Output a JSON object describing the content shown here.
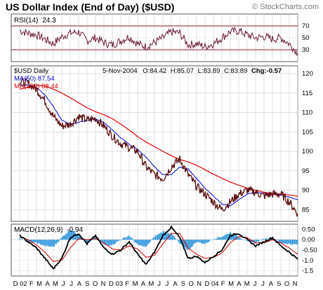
{
  "header": {
    "title": "US Dollar Index (End of Day) ($USD)",
    "credit": "© StockCharts.com"
  },
  "colors": {
    "price": "#5a1010",
    "ma50": "#0000cc",
    "ma200": "#dd0000",
    "rsi": "#6b1a3a",
    "rsi_guides": "#8b1a2a",
    "macd": "#000000",
    "signal": "#cc0000",
    "histogram": "#3399dd",
    "grid": "#cccccc",
    "panel_border": "#555555"
  },
  "chart_data": [
    {
      "type": "line",
      "panel": "RSI",
      "label": "RSI(14)",
      "current_value": "24.3",
      "y_ticks": [
        30,
        50,
        70
      ],
      "ylim": [
        10,
        90
      ],
      "guides": [
        30,
        70
      ],
      "x": [
        "2002-02",
        "2002-03",
        "2002-04",
        "2002-05",
        "2002-06",
        "2002-07",
        "2002-08",
        "2002-09",
        "2002-10",
        "2002-11",
        "2002-12",
        "2003-01",
        "2003-02",
        "2003-03",
        "2003-04",
        "2003-05",
        "2003-06",
        "2003-07",
        "2003-08",
        "2003-09",
        "2003-10",
        "2003-11",
        "2003-12",
        "2004-01",
        "2004-02",
        "2004-03",
        "2004-04",
        "2004-05",
        "2004-06",
        "2004-07",
        "2004-08",
        "2004-09",
        "2004-10",
        "2004-11"
      ],
      "values": [
        62,
        58,
        55,
        48,
        40,
        52,
        58,
        60,
        45,
        50,
        42,
        38,
        45,
        52,
        40,
        35,
        42,
        50,
        60,
        58,
        38,
        40,
        35,
        40,
        50,
        60,
        62,
        55,
        50,
        52,
        48,
        50,
        40,
        24.3
      ]
    },
    {
      "type": "line",
      "panel": "price",
      "legend": [
        "$USD Daily",
        "MA(50) 87.54",
        "MA(200) 88.44"
      ],
      "info": {
        "date": "5-Nov-2004",
        "open": "O:84.42",
        "high": "H:85.07",
        "low": "L:83.89",
        "close": "C:83.89",
        "change": "Chg:-0.57"
      },
      "y_ticks": [
        85,
        90,
        95,
        100,
        105,
        110,
        115,
        120
      ],
      "ylim": [
        82,
        122
      ],
      "x_labels": [
        "D",
        "02",
        "F",
        "M",
        "A",
        "M",
        "J",
        "J",
        "A",
        "S",
        "O",
        "N",
        "D",
        "03",
        "F",
        "M",
        "A",
        "M",
        "J",
        "J",
        "A",
        "S",
        "O",
        "N",
        "D",
        "04",
        "F",
        "M",
        "A",
        "M",
        "J",
        "J",
        "A",
        "S",
        "O",
        "N"
      ],
      "x": [
        "2002-02",
        "2002-03",
        "2002-04",
        "2002-05",
        "2002-06",
        "2002-07",
        "2002-08",
        "2002-09",
        "2002-10",
        "2002-11",
        "2002-12",
        "2003-01",
        "2003-02",
        "2003-03",
        "2003-04",
        "2003-05",
        "2003-06",
        "2003-07",
        "2003-08",
        "2003-09",
        "2003-10",
        "2003-11",
        "2003-12",
        "2004-01",
        "2004-02",
        "2004-03",
        "2004-04",
        "2004-05",
        "2004-06",
        "2004-07",
        "2004-08",
        "2004-09",
        "2004-10",
        "2004-11"
      ],
      "series": [
        {
          "name": "$USD Daily",
          "values": [
            118,
            117.5,
            116,
            113,
            109,
            106.5,
            107,
            109,
            108,
            108.5,
            106.5,
            104,
            102,
            101,
            100,
            96,
            94,
            93,
            96,
            98,
            94,
            91,
            89,
            87,
            85,
            87,
            89,
            90,
            89.5,
            88.5,
            89,
            89,
            87,
            84
          ]
        },
        {
          "name": "MA(50) 87.54",
          "values": [
            117,
            117,
            116.5,
            114.5,
            111.5,
            108,
            107,
            107.5,
            108,
            108.3,
            107.5,
            105.5,
            103.5,
            101.8,
            100.5,
            98.5,
            96,
            94,
            94,
            96,
            95.5,
            93,
            90.5,
            88.5,
            86.5,
            86,
            87.5,
            89,
            89.5,
            89.2,
            89,
            88.8,
            88.2,
            87.54
          ]
        },
        {
          "name": "MA(200) 88.44",
          "values": [
            116,
            116.5,
            117,
            116.8,
            116,
            115,
            113.8,
            112.5,
            111.2,
            110.2,
            109.4,
            108.4,
            107,
            105.5,
            103.8,
            102.4,
            101.2,
            100,
            98.9,
            97.9,
            97.3,
            96.4,
            95.3,
            94.1,
            93.1,
            92.1,
            91.3,
            90.6,
            90,
            89.5,
            89.2,
            89,
            88.8,
            88.44
          ]
        }
      ]
    },
    {
      "type": "line",
      "panel": "MACD",
      "label": "MACD(12,26,9)",
      "current_value": "-0.94",
      "y_ticks": [
        "0.50",
        "0.00",
        "-0.50",
        "-1.0",
        "-1.5"
      ],
      "ylim": [
        -1.75,
        0.75
      ],
      "x": [
        "2002-02",
        "2002-03",
        "2002-04",
        "2002-05",
        "2002-06",
        "2002-07",
        "2002-08",
        "2002-09",
        "2002-10",
        "2002-11",
        "2002-12",
        "2003-01",
        "2003-02",
        "2003-03",
        "2003-04",
        "2003-05",
        "2003-06",
        "2003-07",
        "2003-08",
        "2003-09",
        "2003-10",
        "2003-11",
        "2003-12",
        "2004-01",
        "2004-02",
        "2004-03",
        "2004-04",
        "2004-05",
        "2004-06",
        "2004-07",
        "2004-08",
        "2004-09",
        "2004-10",
        "2004-11"
      ],
      "series": [
        {
          "name": "MACD",
          "values": [
            0.2,
            -0.1,
            -0.4,
            -0.9,
            -1.4,
            -0.9,
            0.1,
            0.3,
            -0.2,
            0.2,
            -0.4,
            -0.7,
            -0.5,
            -0.1,
            -0.7,
            -1.2,
            -0.6,
            0.2,
            0.6,
            0.1,
            -0.9,
            -0.8,
            -1.1,
            -0.8,
            -0.5,
            0.2,
            0.3,
            0.0,
            -0.3,
            -0.1,
            0.1,
            -0.3,
            -0.6,
            -0.94
          ]
        },
        {
          "name": "Signal",
          "values": [
            0.15,
            0.0,
            -0.25,
            -0.6,
            -1.05,
            -1.0,
            -0.4,
            0.05,
            0.0,
            0.05,
            -0.15,
            -0.45,
            -0.5,
            -0.3,
            -0.45,
            -0.85,
            -0.75,
            -0.2,
            0.3,
            0.3,
            -0.4,
            -0.7,
            -0.9,
            -0.85,
            -0.65,
            -0.15,
            0.15,
            0.1,
            -0.15,
            -0.15,
            0.0,
            -0.15,
            -0.4,
            -0.7
          ]
        }
      ]
    }
  ]
}
